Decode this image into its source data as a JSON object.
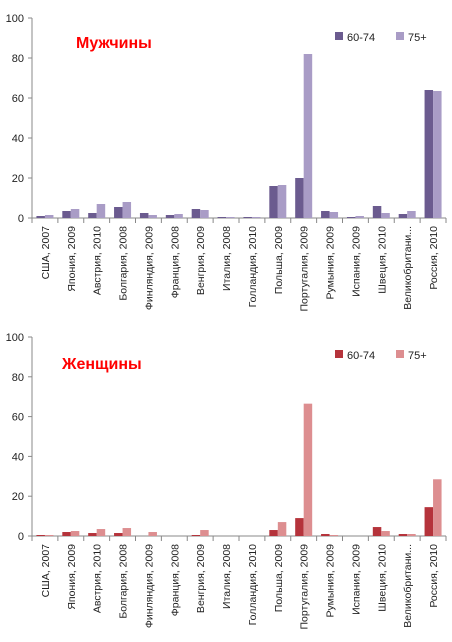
{
  "chart_data": [
    {
      "type": "bar",
      "title": "Мужчины",
      "title_color": "#ff0000",
      "categories": [
        "США, 2007",
        "Япония, 2009",
        "Австрия, 2010",
        "Болгария, 2008",
        "Финляндия, 2009",
        "Франция, 2008",
        "Венгрия, 2009",
        "Италия, 2008",
        "Голландия, 2010",
        "Польша, 2009",
        "Португалия, 2009",
        "Румыния, 2009",
        "Испания, 2009",
        "Швеция, 2010",
        "Великобритани...",
        "Россия, 2010"
      ],
      "series": [
        {
          "name": "60-74",
          "color": "#6b5b8f",
          "values": [
            1,
            3.5,
            2.5,
            5.5,
            2.5,
            1.5,
            4.5,
            0.5,
            0.5,
            16,
            20,
            3.5,
            0.5,
            6,
            2,
            64
          ]
        },
        {
          "name": "75+",
          "color": "#a99cc6",
          "values": [
            1.5,
            4.5,
            7,
            8,
            1.5,
            2,
            4,
            0.5,
            0.5,
            16.5,
            82,
            3,
            1,
            2.5,
            3.5,
            63.5
          ]
        }
      ],
      "ylim": [
        0,
        100
      ],
      "yticks": [
        0,
        20,
        40,
        60,
        80,
        100
      ],
      "grid": false,
      "legend": "top-right"
    },
    {
      "type": "bar",
      "title": "Женщины",
      "title_color": "#ff0000",
      "categories": [
        "США, 2007",
        "Япония, 2009",
        "Австрия, 2010",
        "Болгария, 2008",
        "Финляндия, 2009",
        "Франция, 2008",
        "Венгрия, 2009",
        "Италия, 2008",
        "Голландия, 2010",
        "Польша, 2009",
        "Португалия, 2009",
        "Румыния, 2009",
        "Испания, 2009",
        "Швеция, 2010",
        "Великобритани...",
        "Россия, 2010"
      ],
      "series": [
        {
          "name": "60-74",
          "color": "#b5333b",
          "values": [
            0.5,
            2,
            1.5,
            1.5,
            0,
            0,
            0.5,
            0,
            0,
            3,
            9,
            1,
            0,
            4.5,
            1,
            14.5
          ]
        },
        {
          "name": "75+",
          "color": "#dd8e90",
          "values": [
            0.5,
            2.5,
            3.5,
            4,
            2,
            0,
            3,
            0,
            0,
            7,
            66.5,
            0.5,
            0,
            2.5,
            1,
            28.5
          ]
        }
      ],
      "ylim": [
        0,
        100
      ],
      "yticks": [
        0,
        20,
        40,
        60,
        80,
        100
      ],
      "grid": false,
      "legend": "top-right"
    }
  ]
}
